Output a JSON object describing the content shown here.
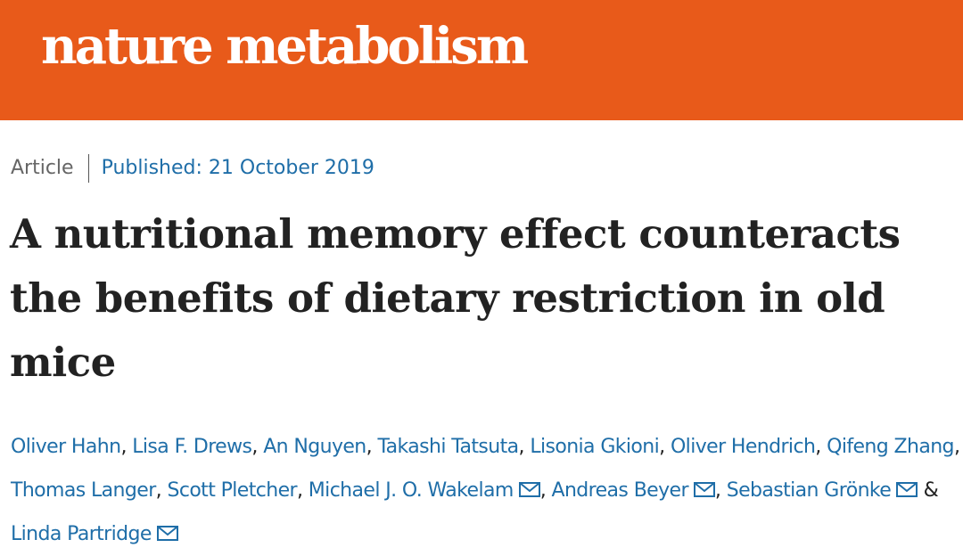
{
  "header": {
    "logo_text": "nature metabolism",
    "brand_color": "#e85a1a"
  },
  "article": {
    "type": "Article",
    "published": "Published: 21 October 2019",
    "title": "A nutritional memory effect counteracts the benefits of dietary restriction in old mice"
  },
  "authors": {
    "list": [
      "Oliver Hahn",
      "Lisa F. Drews",
      "An Nguyen",
      "Takashi Tatsuta",
      "Lisonia Gkioni",
      "Oliver Hendrich",
      "Qifeng Zhang",
      "Thomas Langer",
      "Scott Pletcher",
      "Michael J. O. Wakelam",
      "Andreas Beyer",
      "Sebastian Grönke",
      "Linda Partridge"
    ],
    "comma": ",",
    "ampersand": "&",
    "email_icon": "mail-icon"
  }
}
